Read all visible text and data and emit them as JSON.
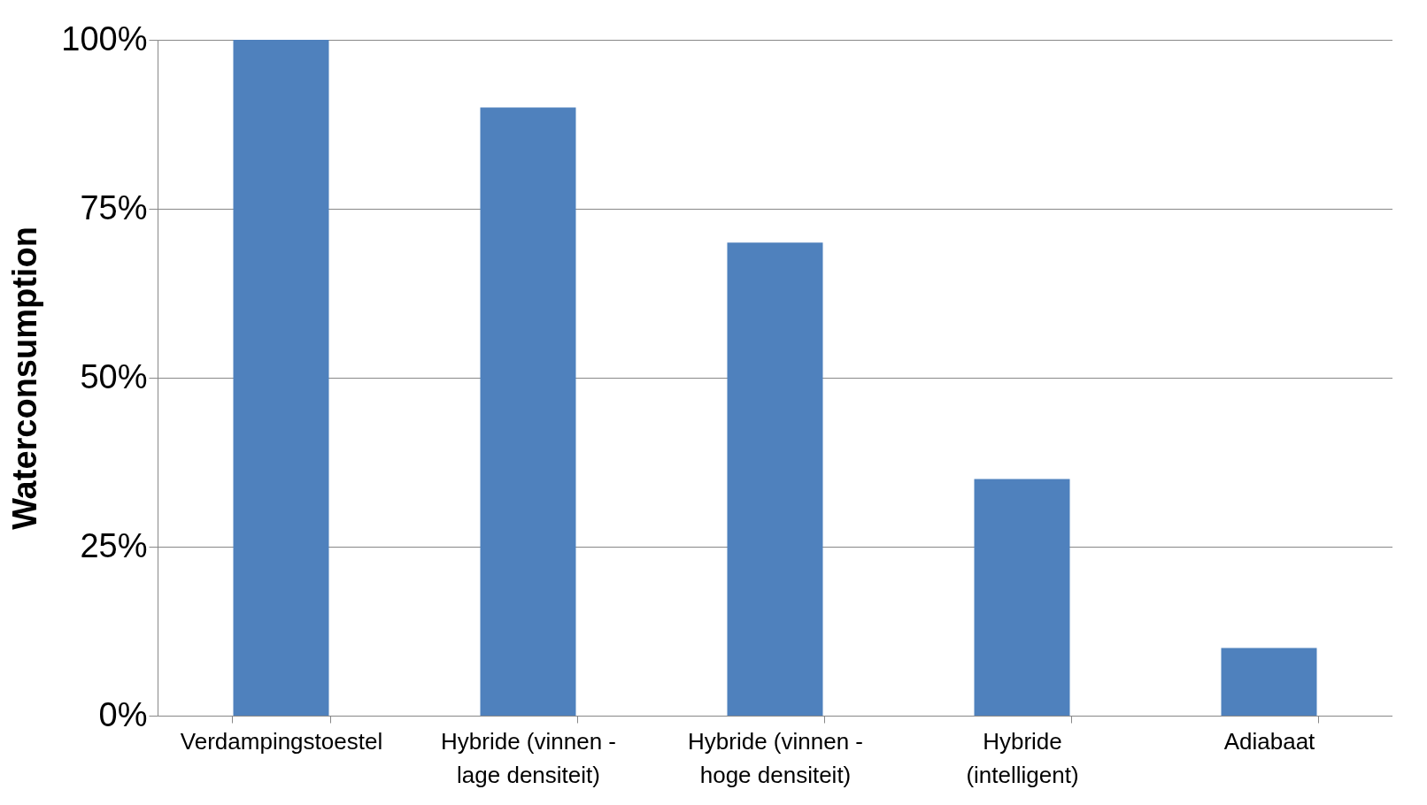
{
  "chart_data": {
    "type": "bar",
    "ylabel": "Waterconsumption",
    "categories": [
      "Verdampingstoestel",
      "Hybride (vinnen - lage densiteit)",
      "Hybride (vinnen - hoge densiteit)",
      "Hybride (intelligent)",
      "Adiabaat"
    ],
    "values": [
      100,
      90,
      70,
      35,
      10
    ],
    "color": "#4f81bd",
    "ylim": [
      0,
      100
    ],
    "yticks": [
      {
        "value": 0,
        "label": "0%"
      },
      {
        "value": 25,
        "label": "25%"
      },
      {
        "value": 50,
        "label": "50%"
      },
      {
        "value": 75,
        "label": "75%"
      },
      {
        "value": 100,
        "label": "100%"
      }
    ],
    "grid": "y"
  }
}
